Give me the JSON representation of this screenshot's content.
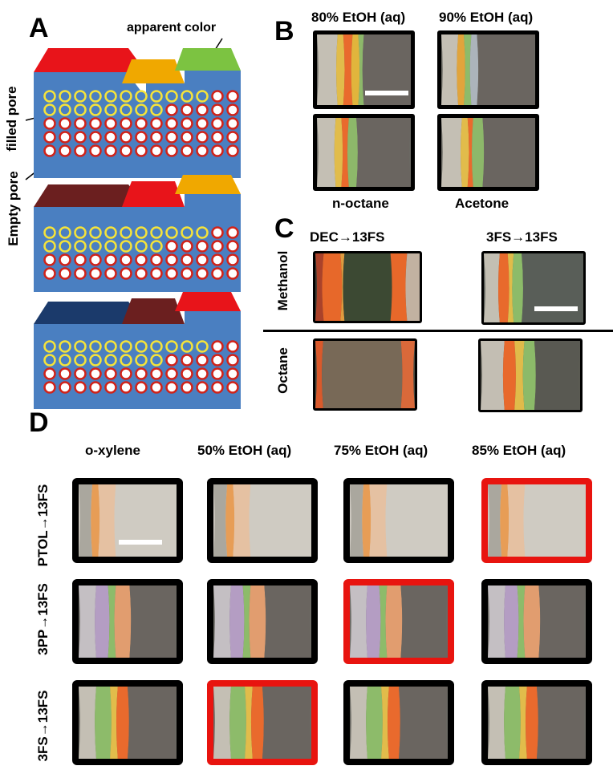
{
  "panels": {
    "A": "A",
    "B": "B",
    "C": "C",
    "D": "D"
  },
  "panel_a": {
    "apparent_color": "apparent color",
    "filled_pore": "filled pore",
    "empty_pore": "Empty pore",
    "stack1_tops": [
      "#e8141a",
      "#f0a800",
      "#7cc341"
    ],
    "stack2_tops": [
      "#6b1f1f",
      "#e8141a",
      "#f0a800"
    ],
    "stack3_tops": [
      "#1b3a6b",
      "#6b1f1f",
      "#e8141a"
    ]
  },
  "panel_b": {
    "labels": [
      "80% EtOH (aq)",
      "90% EtOH (aq)",
      "n-octane",
      "Acetone"
    ]
  },
  "panel_c": {
    "col_labels": [
      "DEC→13FS",
      "3FS→13FS"
    ],
    "row_labels": [
      "Methanol",
      "Octane"
    ]
  },
  "panel_d": {
    "col_labels": [
      "o-xylene",
      "50% EtOH (aq)",
      "75% EtOH (aq)",
      "85% EtOH (aq)"
    ],
    "row_labels": [
      "PTOL→13FS",
      "3PP→13FS",
      "3FS→13FS"
    ],
    "highlight": [
      [
        3
      ],
      [
        2
      ],
      [
        1
      ]
    ],
    "highlight_color": "#e8140f"
  }
}
